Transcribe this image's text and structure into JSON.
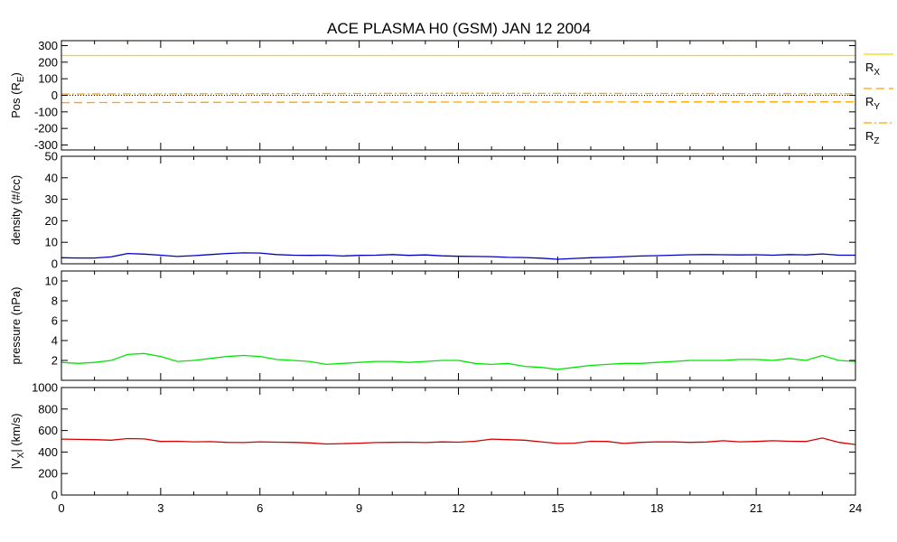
{
  "chart_data": [
    {
      "type": "line",
      "title": "ACE PLASMA H0 (GSM)   JAN 12 2004",
      "ylabel": "Pos (R",
      "ylabel_sub": "E",
      "ylabel_end": ")",
      "ylim": [
        -330,
        330
      ],
      "yticks": [
        300,
        200,
        100,
        0,
        -100,
        -200,
        -300
      ],
      "yticklabels": [
        "300",
        "200",
        "100",
        "0",
        "-100",
        "-200",
        "-300"
      ],
      "series": [
        {
          "name": "R",
          "sub": "X",
          "color": "#f0dc00",
          "style": "solid",
          "x": [
            0,
            24
          ],
          "values": [
            240,
            240
          ]
        },
        {
          "name": "R",
          "sub": "Y",
          "color": "#ffa500",
          "style": "dashed",
          "x": [
            0,
            3,
            6,
            9,
            12,
            15,
            18,
            21,
            24
          ],
          "values": [
            -44,
            -43,
            -42,
            -42,
            -41,
            -41,
            -40,
            -40,
            -40
          ]
        },
        {
          "name": "R",
          "sub": "Z",
          "color": "#ffa500",
          "style": "dashdot",
          "x": [
            0,
            6,
            12,
            18,
            24
          ],
          "values": [
            8,
            10,
            12,
            11,
            9
          ]
        }
      ],
      "zero_line": true
    },
    {
      "type": "line",
      "ylabel": "density (#/cc)",
      "ylim": [
        0,
        50
      ],
      "yticks": [
        0,
        10,
        20,
        30,
        40,
        50
      ],
      "yticklabels": [
        "0",
        "10",
        "20",
        "30",
        "40",
        "50"
      ],
      "series": [
        {
          "color": "#0000c8",
          "x": [
            0,
            0.5,
            1,
            1.5,
            2,
            2.5,
            3,
            3.5,
            4,
            4.5,
            5,
            5.5,
            6,
            6.5,
            7,
            7.5,
            8,
            8.5,
            9,
            9.5,
            10,
            10.5,
            11,
            11.5,
            12,
            12.5,
            13,
            13.5,
            14,
            14.5,
            15,
            15.5,
            16,
            16.5,
            17,
            17.5,
            18,
            18.5,
            19,
            19.5,
            20,
            20.5,
            21,
            21.5,
            22,
            22.5,
            23,
            23.5,
            24
          ],
          "values": [
            2.8,
            2.7,
            2.7,
            3.2,
            4.8,
            4.5,
            4.0,
            3.4,
            3.8,
            4.3,
            4.8,
            5.1,
            5.0,
            4.3,
            4.0,
            3.9,
            4.0,
            3.6,
            3.9,
            4.0,
            4.3,
            3.9,
            4.1,
            3.7,
            3.5,
            3.4,
            3.3,
            3.0,
            2.9,
            2.6,
            2.1,
            2.5,
            2.8,
            3.0,
            3.3,
            3.6,
            3.8,
            4.0,
            4.2,
            4.3,
            4.2,
            4.1,
            4.2,
            4.0,
            4.3,
            4.1,
            4.6,
            4.0,
            4.0
          ]
        }
      ]
    },
    {
      "type": "line",
      "ylabel": "pressure (nPa)",
      "ylim": [
        0,
        11
      ],
      "yticks": [
        2,
        4,
        6,
        8,
        10
      ],
      "yticklabels": [
        "2",
        "4",
        "6",
        "8",
        "10"
      ],
      "series": [
        {
          "color": "#00e600",
          "x": [
            0,
            0.5,
            1,
            1.5,
            2,
            2.5,
            3,
            3.5,
            4,
            4.5,
            5,
            5.5,
            6,
            6.5,
            7,
            7.5,
            8,
            8.5,
            9,
            9.5,
            10,
            10.5,
            11,
            11.5,
            12,
            12.5,
            13,
            13.5,
            14,
            14.5,
            15,
            15.5,
            16,
            16.5,
            17,
            17.5,
            18,
            18.5,
            19,
            19.5,
            20,
            20.5,
            21,
            21.5,
            22,
            22.5,
            23,
            23.5,
            24
          ],
          "values": [
            1.8,
            1.7,
            1.8,
            2.0,
            2.6,
            2.7,
            2.4,
            1.9,
            2.0,
            2.2,
            2.4,
            2.5,
            2.4,
            2.1,
            2.0,
            1.9,
            1.6,
            1.7,
            1.8,
            1.9,
            1.9,
            1.8,
            1.9,
            2.0,
            2.0,
            1.7,
            1.6,
            1.7,
            1.4,
            1.3,
            1.1,
            1.3,
            1.5,
            1.6,
            1.7,
            1.7,
            1.8,
            1.9,
            2.0,
            2.0,
            2.0,
            2.1,
            2.1,
            2.0,
            2.2,
            2.0,
            2.5,
            2.0,
            1.9
          ]
        }
      ]
    },
    {
      "type": "line",
      "ylabel": "|V",
      "ylabel_sub": "X",
      "ylabel_end": "| (km/s)",
      "ylim": [
        0,
        1000
      ],
      "yticks": [
        0,
        200,
        400,
        600,
        800,
        1000
      ],
      "yticklabels": [
        "0",
        "200",
        "400",
        "600",
        "800",
        "1000"
      ],
      "xlim": [
        0,
        24
      ],
      "xticks": [
        0,
        3,
        6,
        9,
        12,
        15,
        18,
        21,
        24
      ],
      "xticklabels": [
        "0",
        "3",
        "6",
        "9",
        "12",
        "15",
        "18",
        "21",
        "24"
      ],
      "series": [
        {
          "color": "#d60000",
          "x": [
            0,
            0.5,
            1,
            1.5,
            2,
            2.5,
            3,
            3.5,
            4,
            4.5,
            5,
            5.5,
            6,
            6.5,
            7,
            7.5,
            8,
            8.5,
            9,
            9.5,
            10,
            10.5,
            11,
            11.5,
            12,
            12.5,
            13,
            13.5,
            14,
            14.5,
            15,
            15.5,
            16,
            16.5,
            17,
            17.5,
            18,
            18.5,
            19,
            19.5,
            20,
            20.5,
            21,
            21.5,
            22,
            22.5,
            23,
            23.5,
            24
          ],
          "values": [
            520,
            518,
            515,
            510,
            525,
            522,
            498,
            500,
            495,
            497,
            490,
            488,
            495,
            492,
            490,
            485,
            475,
            478,
            482,
            488,
            490,
            492,
            488,
            494,
            492,
            500,
            520,
            515,
            510,
            495,
            480,
            482,
            500,
            498,
            480,
            490,
            495,
            494,
            490,
            493,
            505,
            495,
            498,
            505,
            500,
            498,
            530,
            490,
            470
          ]
        }
      ]
    }
  ]
}
